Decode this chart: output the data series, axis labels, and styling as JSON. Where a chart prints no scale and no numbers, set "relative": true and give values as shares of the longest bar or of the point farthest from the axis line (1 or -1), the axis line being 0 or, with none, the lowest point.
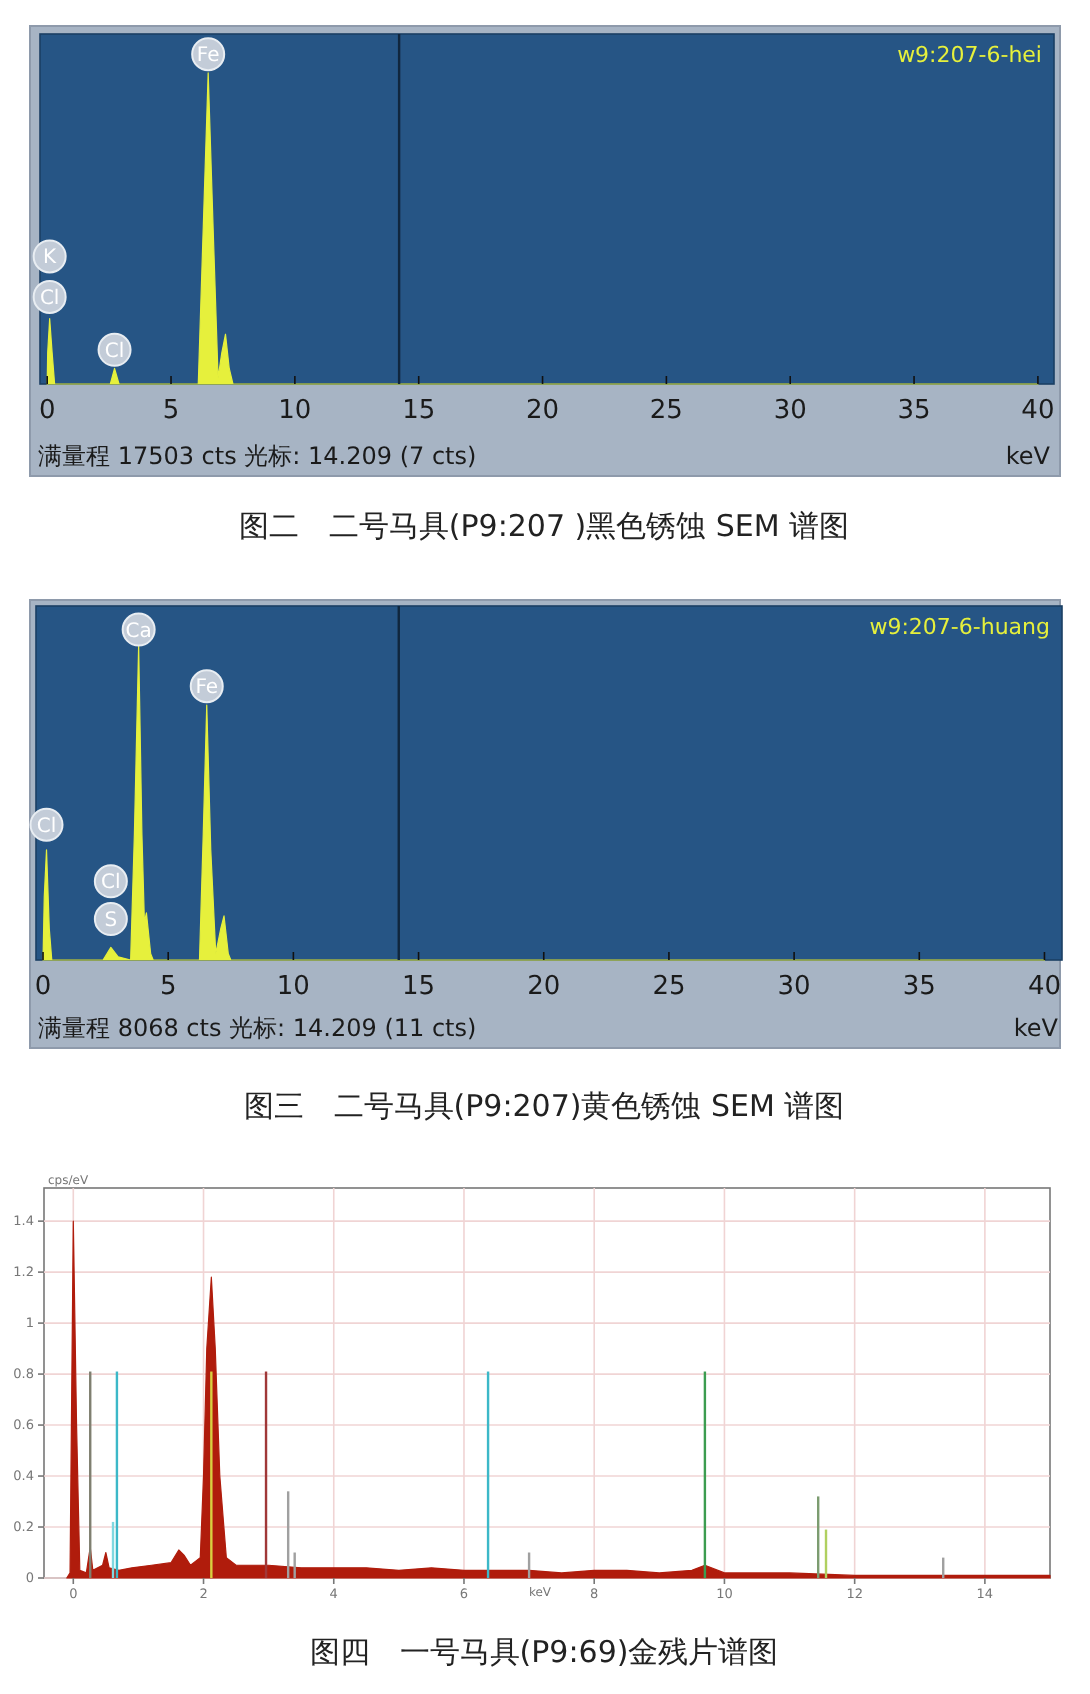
{
  "chart_data": [
    {
      "type": "area",
      "title": "图二　二号马具(P9:207 )黑色锈蚀 SEM 谱图",
      "xlabel": "keV",
      "relative": true,
      "xlim": [
        -0.29,
        40.65
      ],
      "xticks": [
        0,
        5,
        10,
        15,
        20,
        25,
        30,
        35,
        40
      ],
      "legend": "top right",
      "marker": "none",
      "series": [
        {
          "name": "w9:207-6-hei",
          "color": "#e6f03c",
          "x": [
            0,
            0.02,
            0.1,
            0.2,
            0.3,
            2.55,
            2.72,
            2.9,
            6.1,
            6.3,
            6.5,
            6.7,
            6.9,
            7.05,
            7.2,
            7.35,
            7.5,
            40
          ],
          "values": [
            0,
            0.1,
            0.21,
            0.1,
            0,
            0,
            0.05,
            0,
            0,
            0.5,
            1,
            0.5,
            0.02,
            0.1,
            0.16,
            0.05,
            0,
            0
          ]
        }
      ],
      "ref_lines": [
        {
          "axis": "x",
          "value": 14.209,
          "color": "#10263d"
        }
      ],
      "annotations": [
        "满量程 17503 cts 光标: 14.209 (7 cts)",
        {
          "text": "K",
          "x": 0.1,
          "y": 0.41
        },
        {
          "text": "Cl",
          "x": 0.1,
          "y": 0.28
        },
        {
          "text": "Cl",
          "x": 2.72,
          "y": 0.11
        },
        {
          "text": "Fe",
          "x": 6.5,
          "y": 1.06
        }
      ]
    },
    {
      "type": "area",
      "title": "图三　二号马具(P9:207)黄色锈蚀 SEM 谱图",
      "xlabel": "keV",
      "relative": true,
      "xlim": [
        -0.28,
        40.7
      ],
      "xticks": [
        0,
        5,
        10,
        15,
        20,
        25,
        30,
        35,
        40
      ],
      "legend": "top right",
      "marker": "none",
      "series": [
        {
          "name": "w9:207-6-huang",
          "color": "#e6f03c",
          "x": [
            0,
            0.05,
            0.14,
            0.25,
            0.35,
            2.4,
            2.71,
            3.0,
            3.5,
            3.65,
            3.82,
            3.95,
            4.05,
            4.13,
            4.3,
            4.4,
            6.25,
            6.4,
            6.54,
            6.7,
            6.9,
            7.1,
            7.23,
            7.4,
            7.5,
            40
          ],
          "values": [
            0,
            0.2,
            0.35,
            0.1,
            0,
            0,
            0.04,
            0.01,
            0,
            0.4,
            1,
            0.4,
            0.12,
            0.15,
            0.02,
            0,
            0,
            0.4,
            0.81,
            0.35,
            0.02,
            0.1,
            0.14,
            0.02,
            0,
            0
          ]
        }
      ],
      "ref_lines": [
        {
          "axis": "x",
          "value": 14.209,
          "color": "#10263d"
        }
      ],
      "annotations": [
        "满量程 8068 cts 光标: 14.209 (11 cts)",
        {
          "text": "Ca",
          "x": 3.82,
          "y": 1.05
        },
        {
          "text": "Fe",
          "x": 6.54,
          "y": 0.87
        },
        {
          "text": "Cl",
          "x": 0.14,
          "y": 0.43
        },
        {
          "text": "Cl",
          "x": 2.71,
          "y": 0.25
        },
        {
          "text": "S",
          "x": 2.71,
          "y": 0.13
        }
      ]
    },
    {
      "type": "area",
      "title": "图四　一号马具(P9:69)金残片谱图",
      "xlabel": "keV",
      "ylabel": "cps/eV",
      "xlim": [
        -0.45,
        15
      ],
      "ylim": [
        0,
        1.53
      ],
      "xticks": [
        0,
        2,
        4,
        6,
        8,
        10,
        12,
        14
      ],
      "yticks": [
        0,
        0.2,
        0.4,
        0.6,
        0.8,
        1.0,
        1.2,
        1.4
      ],
      "grid": true,
      "marker": "none",
      "series": [
        {
          "color": "#b01c0c",
          "x": [
            -0.1,
            -0.05,
            0,
            0.05,
            0.1,
            0.2,
            0.26,
            0.3,
            0.45,
            0.5,
            0.55,
            0.7,
            0.9,
            1.2,
            1.5,
            1.62,
            1.7,
            1.8,
            1.95,
            2.0,
            2.05,
            2.12,
            2.18,
            2.25,
            2.35,
            2.5,
            3.0,
            3.5,
            4,
            4.5,
            5,
            5.5,
            6,
            6.5,
            7,
            7.5,
            8,
            8.5,
            9,
            9.5,
            9.7,
            10,
            11,
            12,
            13,
            14,
            15
          ],
          "values": [
            0,
            0.02,
            1.4,
            0.6,
            0.03,
            0.02,
            0.12,
            0.03,
            0.05,
            0.1,
            0.04,
            0.03,
            0.04,
            0.05,
            0.06,
            0.11,
            0.09,
            0.05,
            0.08,
            0.4,
            0.9,
            1.18,
            0.9,
            0.4,
            0.08,
            0.05,
            0.05,
            0.04,
            0.04,
            0.04,
            0.03,
            0.04,
            0.03,
            0.03,
            0.03,
            0.02,
            0.03,
            0.03,
            0.02,
            0.03,
            0.05,
            0.02,
            0.02,
            0.01,
            0.01,
            0.01,
            0.01
          ]
        },
        {
          "type": "bar",
          "x": [
            0.26,
            0.61,
            0.67,
            2.12,
            2.96,
            3.3,
            3.4,
            6.37,
            7.0,
            9.7,
            11.44,
            11.56,
            13.36
          ],
          "values": [
            0.81,
            0.22,
            0.81,
            0.81,
            0.81,
            0.34,
            0.1,
            0.81,
            0.1,
            0.81,
            0.32,
            0.19,
            0.08
          ],
          "colors": [
            "#7f7f70",
            "#7fd8e0",
            "#3cb8c8",
            "#d8d040",
            "#a03838",
            "#a0a0a0",
            "#a0a0a0",
            "#3cb8c8",
            "#a0a0a0",
            "#3c9c50",
            "#7c9c70",
            "#b0d060",
            "#a0a0a0"
          ]
        }
      ]
    }
  ]
}
